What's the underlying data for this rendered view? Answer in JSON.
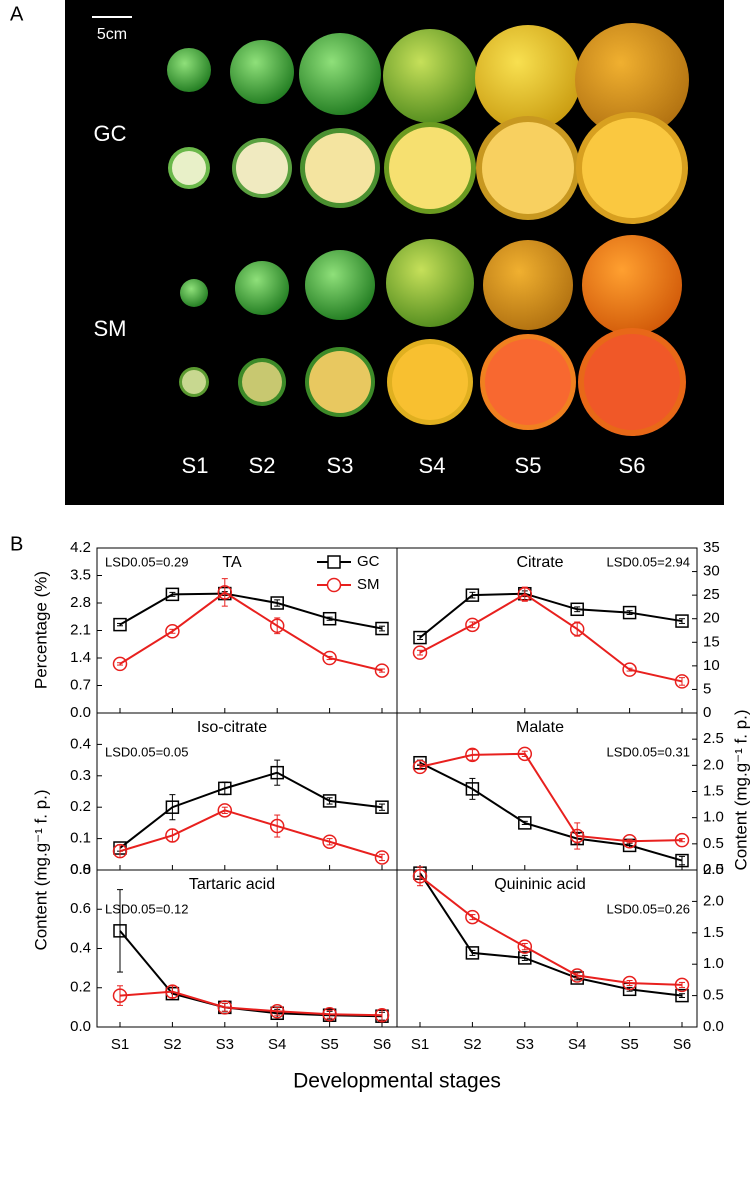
{
  "figure": {
    "panel_labels": [
      "A",
      "B"
    ],
    "xlabel": "Developmental stages"
  },
  "photo": {
    "scale_label": "5cm",
    "row_labels": [
      "GC",
      "SM"
    ],
    "stage_labels": [
      "S1",
      "S2",
      "S3",
      "S4",
      "S5",
      "S6"
    ]
  },
  "chart_data": [
    {
      "type": "line",
      "title": "TA",
      "annotation": "LSD0.05=0.29",
      "ylabel": "Percentage (%)",
      "axis_side": "left",
      "legend": "upper right",
      "ylim": [
        0,
        4.2
      ],
      "yticks": [
        {
          "value": 0,
          "label": "0.0"
        },
        0.7,
        1.4,
        2.1,
        2.8,
        3.5,
        4.2
      ],
      "series": [
        {
          "name": "GC",
          "color": "#000000",
          "marker": "square",
          "values": [
            2.25,
            3.02,
            3.04,
            2.8,
            2.4,
            2.15
          ],
          "errors": [
            0.03,
            0.05,
            0.05,
            0.08,
            0.04,
            0.06
          ]
        },
        {
          "name": "SM",
          "color": "#e8201e",
          "marker": "circle",
          "values": [
            1.25,
            2.08,
            3.07,
            2.22,
            1.4,
            1.08
          ],
          "errors": [
            0.03,
            0.05,
            0.35,
            0.2,
            0.04,
            0.04
          ]
        }
      ]
    },
    {
      "type": "line",
      "title": "Citrate",
      "annotation": "LSD0.05=2.94",
      "axis_side": "right",
      "ylim": [
        0,
        35
      ],
      "yticks": [
        0,
        5,
        10,
        15,
        20,
        25,
        30,
        35
      ],
      "series": [
        {
          "color": "#000000",
          "marker": "square",
          "values": [
            16,
            25,
            25.3,
            22,
            21.3,
            19.5
          ],
          "errors": [
            0.4,
            0.6,
            0.6,
            0.5,
            0.4,
            0.5
          ]
        },
        {
          "color": "#e8201e",
          "marker": "circle",
          "values": [
            12.8,
            18.7,
            25.2,
            17.8,
            9.2,
            6.7
          ],
          "errors": [
            0.5,
            0.6,
            1.5,
            1.5,
            0.3,
            0.8
          ]
        }
      ]
    },
    {
      "type": "line",
      "title": "Iso-citrate",
      "annotation": "LSD0.05=0.05",
      "ylabel": "Content (mg.g⁻¹ f. p.)",
      "axis_side": "left",
      "ylim": [
        0,
        0.5
      ],
      "yticks": [
        {
          "value": 0,
          "label": "0.0"
        },
        0.1,
        0.2,
        0.3,
        0.4
      ],
      "series": [
        {
          "color": "#000000",
          "marker": "square",
          "values": [
            0.07,
            0.2,
            0.26,
            0.31,
            0.22,
            0.2
          ],
          "errors": [
            0.01,
            0.04,
            0.02,
            0.04,
            0.01,
            0.01
          ]
        },
        {
          "color": "#e8201e",
          "marker": "circle",
          "values": [
            0.06,
            0.11,
            0.19,
            0.14,
            0.09,
            0.04
          ],
          "errors": [
            0.02,
            0.02,
            0.01,
            0.035,
            0.01,
            0.01
          ]
        }
      ]
    },
    {
      "type": "line",
      "title": "Malate",
      "annotation": "LSD0.05=0.31",
      "ylabel": "Content (mg.g⁻¹ f. p.)",
      "axis_side": "right",
      "ylim": [
        0,
        3
      ],
      "yticks": [
        {
          "value": 0,
          "label": "0.0"
        },
        0.5,
        {
          "value": 1,
          "label": "1.0"
        },
        1.5,
        {
          "value": 2,
          "label": "2.0"
        },
        2.5
      ],
      "series": [
        {
          "color": "#000000",
          "marker": "square",
          "values": [
            2.05,
            1.55,
            0.9,
            0.6,
            0.47,
            0.18
          ],
          "errors": [
            0.05,
            0.2,
            0.03,
            0.1,
            0.04,
            0.08
          ]
        },
        {
          "color": "#e8201e",
          "marker": "circle",
          "values": [
            1.97,
            2.2,
            2.22,
            0.65,
            0.55,
            0.57
          ],
          "errors": [
            0.05,
            0.1,
            0.05,
            0.25,
            0.03,
            0.03
          ]
        }
      ]
    },
    {
      "type": "line",
      "title": "Tartaric acid",
      "annotation": "LSD0.05=0.12",
      "axis_side": "left",
      "categories": [
        "S1",
        "S2",
        "S3",
        "S4",
        "S5",
        "S6"
      ],
      "ylim": [
        0,
        0.8
      ],
      "yticks": [
        {
          "value": 0,
          "label": "0.0"
        },
        0.2,
        0.4,
        0.6,
        0.8
      ],
      "series": [
        {
          "color": "#000000",
          "marker": "square",
          "values": [
            0.49,
            0.17,
            0.1,
            0.07,
            0.06,
            0.055
          ],
          "errors": [
            0.21,
            0.03,
            0.02,
            0.02,
            0.02,
            0.02
          ]
        },
        {
          "color": "#e8201e",
          "marker": "circle",
          "values": [
            0.16,
            0.18,
            0.1,
            0.08,
            0.065,
            0.06
          ],
          "errors": [
            0.05,
            0.03,
            0.02,
            0.02,
            0.02,
            0.03
          ]
        }
      ]
    },
    {
      "type": "line",
      "title": "Quininic acid",
      "annotation": "LSD0.05=0.26",
      "axis_side": "right",
      "categories": [
        "S1",
        "S2",
        "S3",
        "S4",
        "S5",
        "S6"
      ],
      "ylim": [
        0,
        2.5
      ],
      "yticks": [
        {
          "value": 0,
          "label": "0.0"
        },
        0.5,
        {
          "value": 1,
          "label": "1.0"
        },
        1.5,
        {
          "value": 2,
          "label": "2.0"
        },
        2.5
      ],
      "series": [
        {
          "color": "#000000",
          "marker": "square",
          "values": [
            2.45,
            1.18,
            1.1,
            0.78,
            0.6,
            0.5
          ],
          "errors": [
            0.05,
            0.04,
            0.04,
            0.03,
            0.03,
            0.03
          ]
        },
        {
          "color": "#e8201e",
          "marker": "circle",
          "values": [
            2.4,
            1.75,
            1.28,
            0.82,
            0.7,
            0.67
          ],
          "errors": [
            0.15,
            0.04,
            0.05,
            0.04,
            0.04,
            0.04
          ]
        }
      ]
    }
  ]
}
